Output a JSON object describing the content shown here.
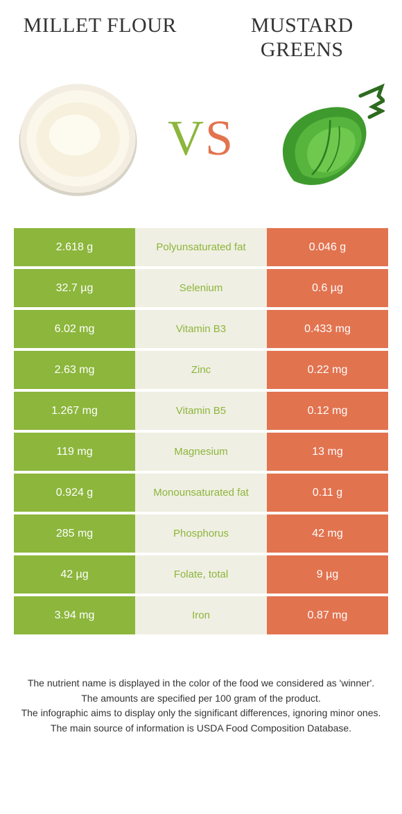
{
  "foods": {
    "left": {
      "name": "MILLET FLOUR",
      "color": "#8cb63c"
    },
    "right": {
      "name": "MUSTARD GREENS",
      "color": "#e2734f"
    }
  },
  "vs": {
    "v": "V",
    "s": "S"
  },
  "table": {
    "mid_bg": "#f0efe3",
    "label_winner_side": "left",
    "rows": [
      {
        "left": "2.618 g",
        "label": "Polyunsaturated fat",
        "right": "0.046 g"
      },
      {
        "left": "32.7 µg",
        "label": "Selenium",
        "right": "0.6 µg"
      },
      {
        "left": "6.02 mg",
        "label": "Vitamin B3",
        "right": "0.433 mg"
      },
      {
        "left": "2.63 mg",
        "label": "Zinc",
        "right": "0.22 mg"
      },
      {
        "left": "1.267 mg",
        "label": "Vitamin B5",
        "right": "0.12 mg"
      },
      {
        "left": "119 mg",
        "label": "Magnesium",
        "right": "13 mg"
      },
      {
        "left": "0.924 g",
        "label": "Monounsaturated fat",
        "right": "0.11 g"
      },
      {
        "left": "285 mg",
        "label": "Phosphorus",
        "right": "42 mg"
      },
      {
        "left": "42 µg",
        "label": "Folate, total",
        "right": "9 µg"
      },
      {
        "left": "3.94 mg",
        "label": "Iron",
        "right": "0.87 mg"
      }
    ]
  },
  "footer": {
    "l1": "The nutrient name is displayed in the color of the food we considered as 'winner'.",
    "l2": "The amounts are specified per 100 gram of the product.",
    "l3": "The infographic aims to display only the significant differences, ignoring minor ones.",
    "l4": "The main source of information is USDA Food Composition Database."
  }
}
